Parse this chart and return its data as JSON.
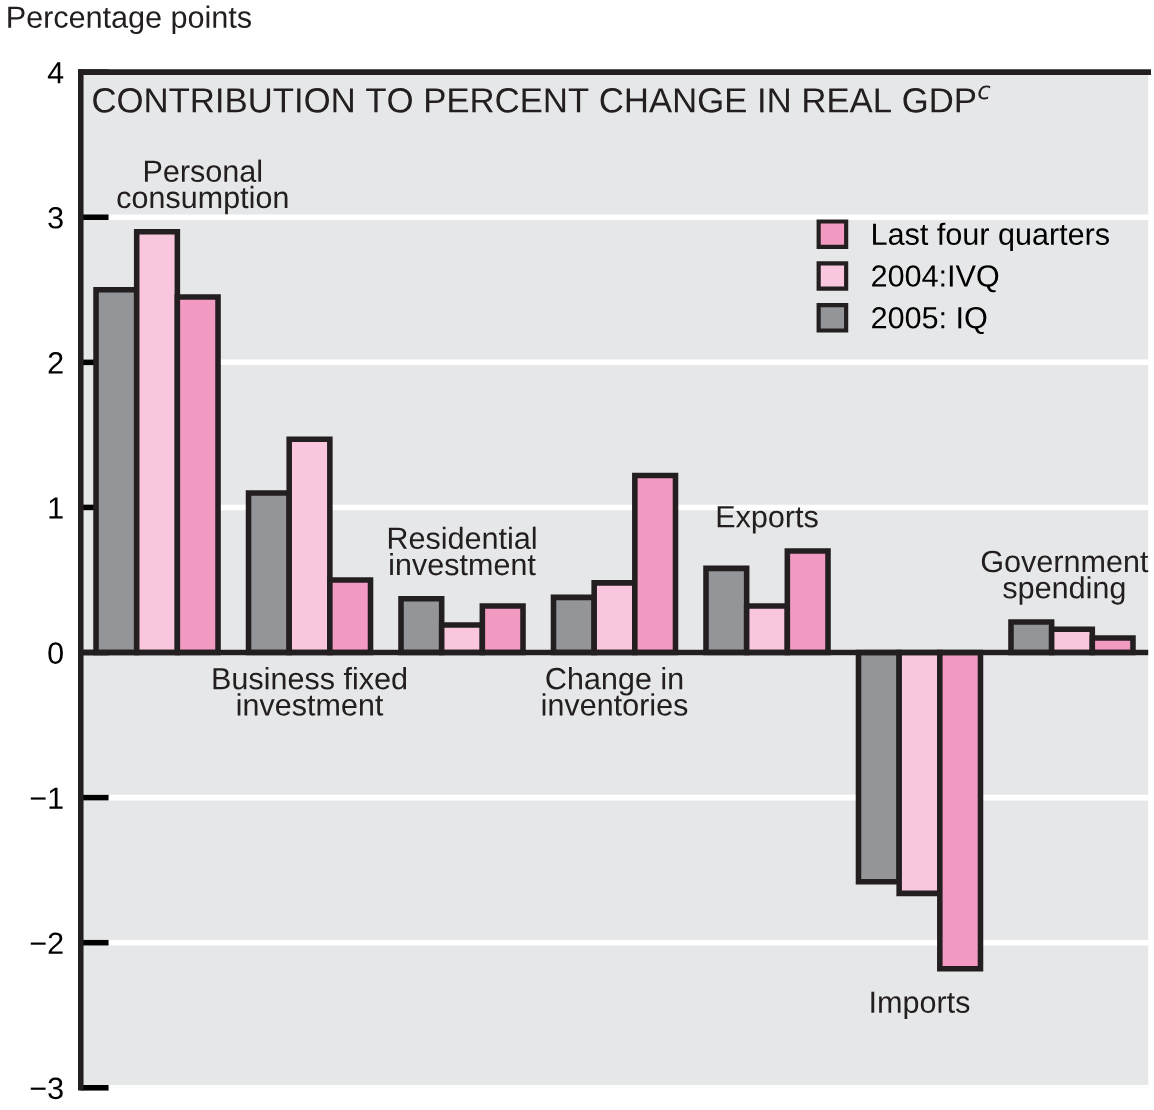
{
  "chart_data": {
    "type": "bar",
    "title": "CONTRIBUTION TO PERCENT CHANGE IN REAL GDP$^{c}$",
    "ylabel": "Percentage points",
    "categories": [
      "Personal\nconsumption",
      "Business fixed\ninvestment",
      "Residential\ninvestment",
      "Change in\ninventories",
      "Exports",
      "Imports",
      "Government\nspending"
    ],
    "series": [
      {
        "name": "2005: IQ",
        "color": "#939598",
        "values": [
          2.5,
          1.1,
          0.37,
          0.38,
          0.58,
          -1.58,
          0.21
        ]
      },
      {
        "name": "2004:IVQ",
        "color": "#f9c6dd",
        "values": [
          2.9,
          1.47,
          0.19,
          0.48,
          0.32,
          -1.66,
          0.16
        ]
      },
      {
        "name": "Last four quarters",
        "color": "#f29ac2",
        "values": [
          2.45,
          0.5,
          0.32,
          1.22,
          0.7,
          -2.18,
          0.1
        ]
      }
    ],
    "ylim": [
      -3,
      4
    ],
    "yticks": [
      {
        "value": -3,
        "label": "−3"
      },
      {
        "value": -2,
        "label": "−2"
      },
      {
        "value": -1,
        "label": "−1"
      },
      0,
      1,
      2,
      3,
      4
    ],
    "grid": "y",
    "legend": "top right"
  }
}
